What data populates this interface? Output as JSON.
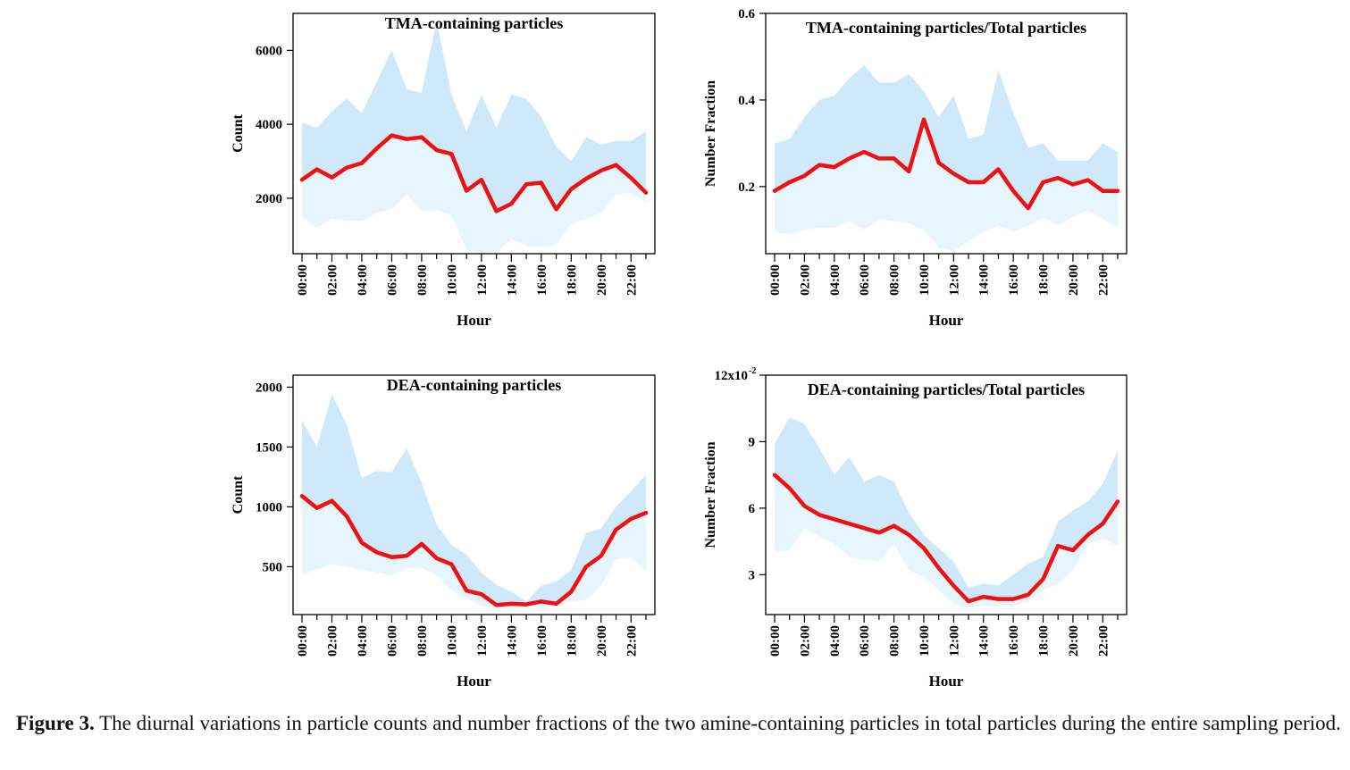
{
  "figure": {
    "label": "Figure 3.",
    "caption": "The diurnal variations in particle counts and number fractions of the two amine-containing particles in total particles during the entire sampling period."
  },
  "colors": {
    "line": "#ee1111",
    "band_dark": "#cfe9fb",
    "band_light": "#e7f5fd",
    "axis": "#000000"
  },
  "chart_data": [
    {
      "type": "area",
      "title": "TMA-containing particles",
      "xlabel": "Hour",
      "ylabel": "Count",
      "ylim": [
        500,
        7000
      ],
      "yticks": [
        2000,
        4000,
        6000
      ],
      "ytick_labels": [
        "2000",
        "4000",
        "6000"
      ],
      "xtick_labels": [
        "00:00",
        "02:00",
        "04:00",
        "06:00",
        "08:00",
        "10:00",
        "12:00",
        "14:00",
        "16:00",
        "18:00",
        "20:00",
        "22:00"
      ],
      "x": [
        0,
        1,
        2,
        3,
        4,
        5,
        6,
        7,
        8,
        9,
        10,
        11,
        12,
        13,
        14,
        15,
        16,
        17,
        18,
        19,
        20,
        21,
        22,
        23
      ],
      "series": [
        {
          "role": "upper",
          "values": [
            4050,
            3900,
            4350,
            4700,
            4300,
            5150,
            6000,
            4950,
            4850,
            6800,
            4800,
            3800,
            4800,
            3900,
            4800,
            4700,
            4200,
            3400,
            3000,
            3650,
            3450,
            3550,
            3550,
            3800
          ]
        },
        {
          "role": "mean",
          "values": [
            2500,
            2780,
            2560,
            2830,
            2950,
            3350,
            3700,
            3600,
            3650,
            3300,
            3200,
            2200,
            2500,
            1650,
            1850,
            2380,
            2420,
            1700,
            2250,
            2530,
            2750,
            2900,
            2550,
            2150
          ]
        },
        {
          "role": "lower",
          "values": [
            1500,
            1200,
            1450,
            1400,
            1380,
            1600,
            1700,
            2100,
            1650,
            1680,
            1550,
            600,
            500,
            450,
            900,
            700,
            680,
            750,
            1300,
            1450,
            1600,
            2100,
            2150,
            1900
          ]
        }
      ]
    },
    {
      "type": "area",
      "title": "TMA-containing particles/Total particles",
      "xlabel": "Hour",
      "ylabel": "Number Fraction",
      "ylim": [
        0.045,
        0.6
      ],
      "yticks": [
        0.2,
        0.4,
        0.6
      ],
      "ytick_labels": [
        "0.2",
        "0.4",
        "0.6"
      ],
      "xtick_labels": [
        "00:00",
        "02:00",
        "04:00",
        "06:00",
        "08:00",
        "10:00",
        "12:00",
        "14:00",
        "16:00",
        "18:00",
        "20:00",
        "22:00"
      ],
      "x": [
        0,
        1,
        2,
        3,
        4,
        5,
        6,
        7,
        8,
        9,
        10,
        11,
        12,
        13,
        14,
        15,
        16,
        17,
        18,
        19,
        20,
        21,
        22,
        23
      ],
      "series": [
        {
          "role": "upper",
          "values": [
            0.3,
            0.31,
            0.36,
            0.4,
            0.41,
            0.45,
            0.48,
            0.44,
            0.44,
            0.46,
            0.42,
            0.36,
            0.41,
            0.31,
            0.32,
            0.47,
            0.37,
            0.29,
            0.3,
            0.26,
            0.26,
            0.26,
            0.3,
            0.28
          ]
        },
        {
          "role": "mean",
          "values": [
            0.19,
            0.21,
            0.225,
            0.25,
            0.245,
            0.265,
            0.28,
            0.265,
            0.265,
            0.235,
            0.355,
            0.255,
            0.23,
            0.21,
            0.21,
            0.24,
            0.19,
            0.15,
            0.21,
            0.22,
            0.205,
            0.215,
            0.19,
            0.19
          ]
        },
        {
          "role": "lower",
          "values": [
            0.095,
            0.09,
            0.1,
            0.105,
            0.105,
            0.12,
            0.1,
            0.125,
            0.12,
            0.115,
            0.1,
            0.06,
            0.05,
            0.075,
            0.095,
            0.11,
            0.095,
            0.11,
            0.13,
            0.11,
            0.13,
            0.145,
            0.125,
            0.105
          ]
        }
      ]
    },
    {
      "type": "area",
      "title": "DEA-containing particles",
      "xlabel": "Hour",
      "ylabel": "Count",
      "ylim": [
        100,
        2100
      ],
      "yticks": [
        500,
        1000,
        1500,
        2000
      ],
      "ytick_labels": [
        "500",
        "1000",
        "1500",
        "2000"
      ],
      "xtick_labels": [
        "00:00",
        "02:00",
        "04:00",
        "06:00",
        "08:00",
        "10:00",
        "12:00",
        "14:00",
        "16:00",
        "18:00",
        "20:00",
        "22:00"
      ],
      "x": [
        0,
        1,
        2,
        3,
        4,
        5,
        6,
        7,
        8,
        9,
        10,
        11,
        12,
        13,
        14,
        15,
        16,
        17,
        18,
        19,
        20,
        21,
        22,
        23
      ],
      "series": [
        {
          "role": "upper",
          "values": [
            1720,
            1500,
            1940,
            1680,
            1240,
            1300,
            1290,
            1490,
            1200,
            850,
            680,
            600,
            450,
            350,
            290,
            210,
            340,
            380,
            470,
            780,
            820,
            1000,
            1130,
            1270
          ]
        },
        {
          "role": "mean",
          "values": [
            1090,
            990,
            1050,
            920,
            700,
            620,
            580,
            590,
            690,
            570,
            520,
            300,
            270,
            180,
            190,
            185,
            210,
            190,
            290,
            500,
            590,
            810,
            900,
            950
          ]
        },
        {
          "role": "lower",
          "values": [
            430,
            480,
            520,
            500,
            470,
            450,
            430,
            490,
            490,
            430,
            300,
            240,
            170,
            150,
            170,
            170,
            175,
            180,
            210,
            220,
            340,
            560,
            580,
            460
          ]
        }
      ]
    },
    {
      "type": "area",
      "title": "DEA-containing particles/Total particles",
      "xlabel": "Hour",
      "ylabel": "Number Fraction",
      "ylim": [
        0.012,
        0.12
      ],
      "yticks": [
        0.03,
        0.06,
        0.09,
        0.12
      ],
      "ytick_labels": [
        "3",
        "6",
        "9",
        "12x10"
      ],
      "ytick_top_exponent": "-2",
      "xtick_labels": [
        "00:00",
        "02:00",
        "04:00",
        "06:00",
        "08:00",
        "10:00",
        "12:00",
        "14:00",
        "16:00",
        "18:00",
        "20:00",
        "22:00"
      ],
      "x": [
        0,
        1,
        2,
        3,
        4,
        5,
        6,
        7,
        8,
        9,
        10,
        11,
        12,
        13,
        14,
        15,
        16,
        17,
        18,
        19,
        20,
        21,
        22,
        23
      ],
      "series": [
        {
          "role": "upper",
          "values": [
            0.089,
            0.101,
            0.098,
            0.087,
            0.075,
            0.083,
            0.072,
            0.075,
            0.072,
            0.058,
            0.048,
            0.042,
            0.036,
            0.024,
            0.026,
            0.025,
            0.03,
            0.035,
            0.038,
            0.054,
            0.059,
            0.063,
            0.071,
            0.086
          ]
        },
        {
          "role": "mean",
          "values": [
            0.075,
            0.069,
            0.061,
            0.057,
            0.055,
            0.053,
            0.051,
            0.049,
            0.052,
            0.048,
            0.042,
            0.033,
            0.025,
            0.018,
            0.02,
            0.019,
            0.019,
            0.021,
            0.028,
            0.043,
            0.041,
            0.048,
            0.053,
            0.063
          ]
        },
        {
          "role": "lower",
          "values": [
            0.04,
            0.041,
            0.051,
            0.047,
            0.044,
            0.038,
            0.037,
            0.036,
            0.044,
            0.032,
            0.029,
            0.023,
            0.017,
            0.015,
            0.016,
            0.016,
            0.016,
            0.018,
            0.023,
            0.026,
            0.032,
            0.044,
            0.046,
            0.043
          ]
        }
      ]
    }
  ]
}
